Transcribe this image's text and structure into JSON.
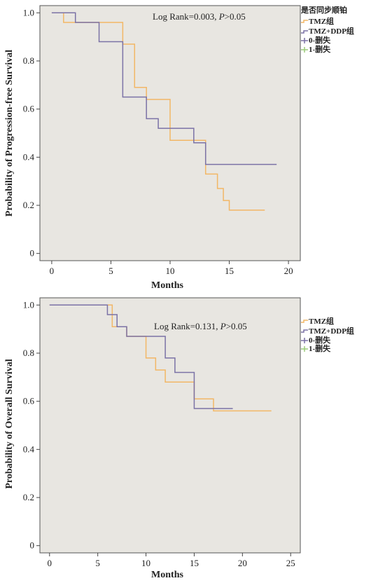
{
  "colors": {
    "plot_bg": "#e8e6e1",
    "frame": "#555555",
    "tmz": "#f2b766",
    "tmz_ddp": "#7b72a6",
    "censor_0": "#7b72a6",
    "censor_1": "#9ccc7a"
  },
  "chart_data": [
    {
      "type": "line",
      "title": "",
      "xlabel": "Months",
      "ylabel": "Probability of Progression-free Survival",
      "xlim": [
        -1,
        21
      ],
      "ylim": [
        -0.03,
        1.03
      ],
      "xticks": [
        0,
        5,
        10,
        15,
        20
      ],
      "yticks": [
        0,
        0.2,
        0.4,
        0.6,
        0.8,
        1.0
      ],
      "ytick_labels": [
        "0",
        "0.2",
        "0.4",
        "0.6",
        "0.8",
        "1.0"
      ],
      "grid": false,
      "annotation": {
        "prefix": "Log Rank=0.003, ",
        "p": "P",
        "suffix": ">0.05"
      },
      "legend": {
        "placement": "outside-top-right",
        "title": "是否同步顺铂",
        "entries": [
          "TMZ组",
          "TMZ+DDP组",
          "0-删失",
          "1-删失"
        ]
      },
      "series": [
        {
          "name": "TMZ组",
          "step": true,
          "x": [
            0,
            1,
            6,
            7,
            8,
            10,
            11,
            13,
            14,
            14.5,
            15,
            18
          ],
          "y": [
            1.0,
            0.96,
            0.87,
            0.69,
            0.64,
            0.47,
            0.47,
            0.33,
            0.27,
            0.22,
            0.18,
            0.18
          ]
        },
        {
          "name": "TMZ+DDP组",
          "step": true,
          "x": [
            0,
            2,
            4,
            6,
            8,
            9,
            12,
            13,
            19
          ],
          "y": [
            1.0,
            0.96,
            0.88,
            0.65,
            0.56,
            0.52,
            0.46,
            0.37,
            0.37
          ]
        }
      ]
    },
    {
      "type": "line",
      "title": "",
      "xlabel": "Months",
      "ylabel": "Probability of Overall Survival",
      "xlim": [
        -1,
        26
      ],
      "ylim": [
        -0.03,
        1.03
      ],
      "xticks": [
        0,
        5,
        10,
        15,
        20,
        25
      ],
      "yticks": [
        0,
        0.2,
        0.4,
        0.6,
        0.8,
        1.0
      ],
      "ytick_labels": [
        "0",
        "0.2",
        "0.4",
        "0.6",
        "0.8",
        "1.0"
      ],
      "grid": false,
      "annotation": {
        "prefix": "Log Rank=0.131, ",
        "p": "P",
        "suffix": ">0.05"
      },
      "legend": {
        "placement": "outside-top-right",
        "title": "",
        "entries": [
          "TMZ组",
          "TMZ+DDP组",
          "0-删失",
          "1-删失"
        ]
      },
      "series": [
        {
          "name": "TMZ组",
          "step": true,
          "x": [
            0,
            6.5,
            8,
            10,
            11,
            12,
            14,
            15,
            17,
            23
          ],
          "y": [
            1.0,
            0.91,
            0.87,
            0.78,
            0.73,
            0.68,
            0.68,
            0.61,
            0.56,
            0.56
          ]
        },
        {
          "name": "TMZ+DDP组",
          "step": true,
          "x": [
            0,
            6,
            7,
            8,
            10,
            12,
            13,
            15,
            19
          ],
          "y": [
            1.0,
            0.96,
            0.91,
            0.87,
            0.87,
            0.78,
            0.72,
            0.57,
            0.57
          ]
        }
      ]
    }
  ]
}
